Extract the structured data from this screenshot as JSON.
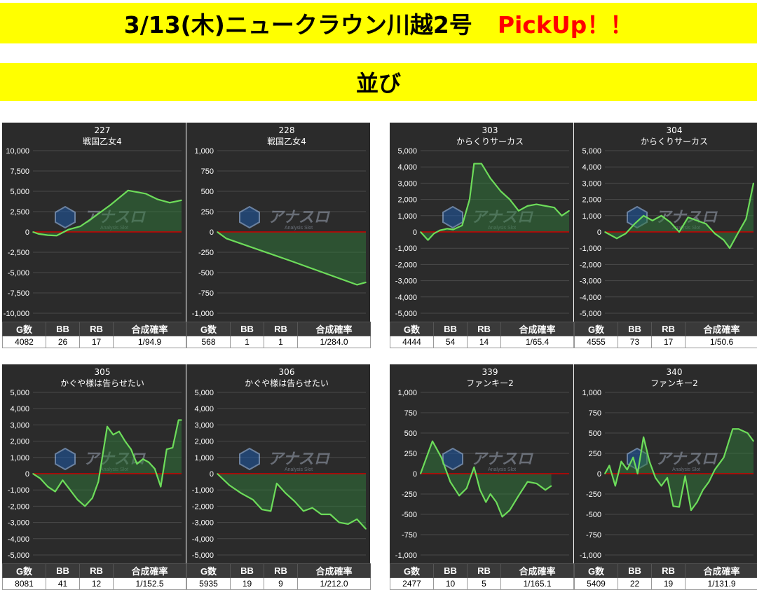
{
  "header": {
    "title": "3/13(木)ニュークラウン川越2号",
    "pickup": "PickUp！！",
    "subtitle": "並び"
  },
  "colors": {
    "banner": "#ffff00",
    "chart_bg": "#2b2b2b",
    "line": "#6ddc5a",
    "zero_line": "#cc0000"
  },
  "watermark": {
    "logo": "アナスロ",
    "sub": "Analysis Slot"
  },
  "table_headers": [
    "G数",
    "BB",
    "RB",
    "合成確率"
  ],
  "chart_data": [
    {
      "type": "area",
      "title": "227",
      "subtitle": "戦国乙女4",
      "ylim": [
        -10000,
        10000
      ],
      "yticks": [
        10000,
        7500,
        5000,
        2500,
        0,
        -2500,
        -5000,
        -7500,
        -10000
      ],
      "ytick_labels": [
        "10,000",
        "7,500",
        "5,000",
        "2,500",
        "0",
        "-2,500",
        "-5,000",
        "-7,500",
        "-10,000"
      ],
      "x": [
        0,
        4,
        10,
        16,
        24,
        32,
        40,
        52,
        64,
        76,
        84,
        92,
        100
      ],
      "values": [
        0,
        -250,
        -400,
        -450,
        300,
        700,
        1700,
        3300,
        5100,
        4700,
        4000,
        3600,
        3900
      ],
      "stats": {
        "games": "4082",
        "bb": "26",
        "rb": "17",
        "rate": "1/94.9"
      }
    },
    {
      "type": "area",
      "title": "228",
      "subtitle": "戦国乙女4",
      "ylim": [
        -1000,
        1000
      ],
      "yticks": [
        1000,
        750,
        500,
        250,
        0,
        -250,
        -500,
        -750,
        -1000
      ],
      "ytick_labels": [
        "1,000",
        "750",
        "500",
        "250",
        "0",
        "-250",
        "-500",
        "-750",
        "-1,000"
      ],
      "x": [
        0,
        6,
        50,
        94,
        100
      ],
      "values": [
        0,
        -80,
        -360,
        -650,
        -620
      ],
      "stats": {
        "games": "568",
        "bb": "1",
        "rb": "1",
        "rate": "1/284.0"
      }
    },
    {
      "type": "area",
      "title": "303",
      "subtitle": "からくりサーカス",
      "ylim": [
        -5000,
        5000
      ],
      "yticks": [
        5000,
        4000,
        3000,
        2000,
        1000,
        0,
        -1000,
        -2000,
        -3000,
        -4000,
        -5000
      ],
      "ytick_labels": [
        "5,000",
        "4,000",
        "3,000",
        "2,000",
        "1,000",
        "0",
        "-1,000",
        "-2,000",
        "-3,000",
        "-4,000",
        "-5,000"
      ],
      "x": [
        0,
        5,
        9,
        13,
        18,
        22,
        28,
        33,
        36,
        41,
        47,
        54,
        60,
        66,
        72,
        78,
        84,
        90,
        95,
        100
      ],
      "values": [
        0,
        -500,
        -100,
        100,
        200,
        150,
        400,
        2000,
        4200,
        4200,
        3300,
        2500,
        2000,
        1300,
        1600,
        1700,
        1600,
        1500,
        1000,
        1300
      ],
      "stats": {
        "games": "4444",
        "bb": "54",
        "rb": "14",
        "rate": "1/65.4"
      }
    },
    {
      "type": "area",
      "title": "304",
      "subtitle": "からくりサーカス",
      "ylim": [
        -5000,
        5000
      ],
      "yticks": [
        5000,
        4000,
        3000,
        2000,
        1000,
        0,
        -1000,
        -2000,
        -3000,
        -4000,
        -5000
      ],
      "ytick_labels": [
        "5,000",
        "4,000",
        "3,000",
        "2,000",
        "1,000",
        "0",
        "-1,000",
        "-2,000",
        "-3,000",
        "-4,000",
        "-5,000"
      ],
      "x": [
        0,
        8,
        14,
        20,
        26,
        32,
        38,
        44,
        50,
        56,
        62,
        68,
        74,
        80,
        84,
        90,
        95,
        100
      ],
      "values": [
        0,
        -400,
        -100,
        500,
        1000,
        700,
        1000,
        600,
        0,
        900,
        700,
        500,
        -100,
        -500,
        -1000,
        0,
        800,
        3000
      ],
      "stats": {
        "games": "4555",
        "bb": "73",
        "rb": "17",
        "rate": "1/50.6"
      }
    },
    {
      "type": "area",
      "title": "305",
      "subtitle": "かぐや様は告らせたい",
      "ylim": [
        -5000,
        5000
      ],
      "yticks": [
        5000,
        4000,
        3000,
        2000,
        1000,
        0,
        -1000,
        -2000,
        -3000,
        -4000,
        -5000
      ],
      "ytick_labels": [
        "5,000",
        "4,000",
        "3,000",
        "2,000",
        "1,000",
        "0",
        "-1,000",
        "-2,000",
        "-3,000",
        "-4,000",
        "-5,000"
      ],
      "x": [
        0,
        5,
        10,
        15,
        20,
        25,
        30,
        35,
        40,
        44,
        47,
        50,
        54,
        58,
        62,
        66,
        70,
        74,
        78,
        82,
        86,
        90,
        94,
        98,
        100
      ],
      "values": [
        0,
        -300,
        -800,
        -1100,
        -400,
        -1000,
        -1600,
        -2000,
        -1500,
        -500,
        1200,
        2900,
        2400,
        2600,
        2000,
        1500,
        600,
        900,
        700,
        300,
        -800,
        1500,
        1600,
        3300,
        3300
      ],
      "stats": {
        "games": "8081",
        "bb": "41",
        "rb": "12",
        "rate": "1/152.5"
      }
    },
    {
      "type": "area",
      "title": "306",
      "subtitle": "かぐや様は告らせたい",
      "ylim": [
        -5000,
        5000
      ],
      "yticks": [
        5000,
        4000,
        3000,
        2000,
        1000,
        0,
        -1000,
        -2000,
        -3000,
        -4000,
        -5000
      ],
      "ytick_labels": [
        "5,000",
        "4,000",
        "3,000",
        "2,000",
        "1,000",
        "0",
        "-1,000",
        "-2,000",
        "-3,000",
        "-4,000",
        "-5,000"
      ],
      "x": [
        0,
        8,
        16,
        24,
        30,
        36,
        40,
        46,
        52,
        58,
        64,
        70,
        76,
        82,
        88,
        94,
        100
      ],
      "values": [
        0,
        -700,
        -1200,
        -1600,
        -2200,
        -2300,
        -600,
        -1200,
        -1700,
        -2300,
        -2100,
        -2500,
        -2500,
        -3000,
        -3100,
        -2800,
        -3400
      ],
      "stats": {
        "games": "5935",
        "bb": "19",
        "rb": "9",
        "rate": "1/212.0"
      }
    },
    {
      "type": "area",
      "title": "339",
      "subtitle": "ファンキー2",
      "ylim": [
        -1000,
        1000
      ],
      "yticks": [
        1000,
        750,
        500,
        250,
        0,
        -250,
        -500,
        -750,
        -1000
      ],
      "ytick_labels": [
        "1,000",
        "750",
        "500",
        "250",
        "0",
        "-250",
        "-500",
        "-750",
        "-1,000"
      ],
      "x": [
        0,
        8,
        14,
        20,
        26,
        31,
        36,
        40,
        44,
        47,
        51,
        55,
        60,
        66,
        72,
        78,
        84,
        88
      ],
      "values": [
        0,
        400,
        200,
        -100,
        -270,
        -180,
        80,
        -200,
        -350,
        -250,
        -350,
        -530,
        -450,
        -270,
        -100,
        -120,
        -200,
        -150
      ],
      "stats": {
        "games": "2477",
        "bb": "10",
        "rb": "5",
        "rate": "1/165.1"
      }
    },
    {
      "type": "area",
      "title": "340",
      "subtitle": "ファンキー2",
      "ylim": [
        -1000,
        1000
      ],
      "yticks": [
        1000,
        750,
        500,
        250,
        0,
        -250,
        -500,
        -750,
        -1000
      ],
      "ytick_labels": [
        "1,000",
        "750",
        "500",
        "250",
        "0",
        "-250",
        "-500",
        "-750",
        "-1,000"
      ],
      "x": [
        0,
        3,
        7,
        11,
        15,
        19,
        22,
        26,
        30,
        34,
        38,
        42,
        46,
        50,
        54,
        58,
        62,
        66,
        70,
        74,
        80,
        86,
        90,
        96,
        100
      ],
      "values": [
        0,
        100,
        -150,
        150,
        50,
        200,
        0,
        450,
        150,
        -50,
        -150,
        -50,
        -400,
        -410,
        -30,
        -450,
        -350,
        -200,
        -100,
        50,
        200,
        550,
        550,
        500,
        400
      ],
      "stats": {
        "games": "5409",
        "bb": "22",
        "rb": "19",
        "rate": "1/131.9"
      }
    }
  ]
}
